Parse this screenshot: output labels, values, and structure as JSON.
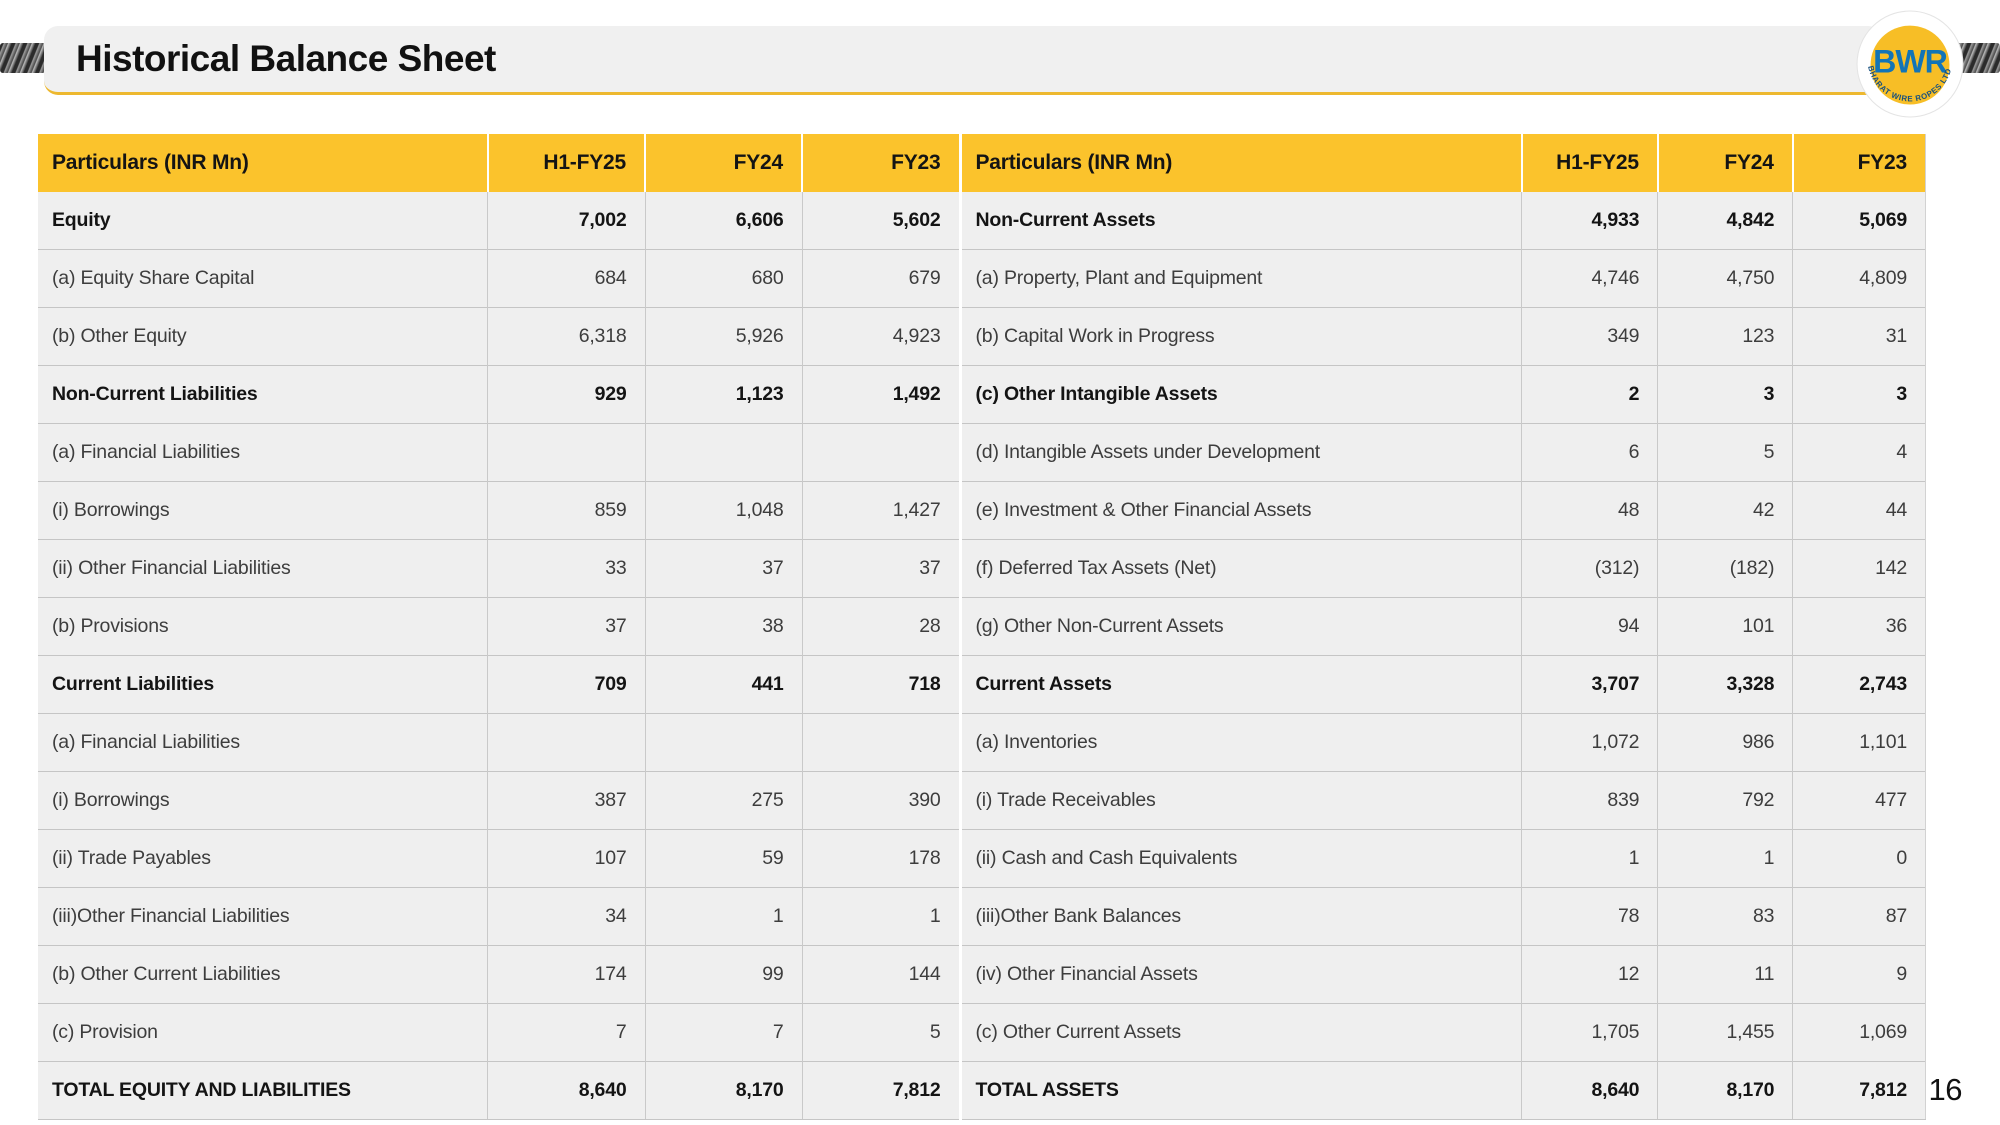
{
  "slide": {
    "title": "Historical Balance Sheet",
    "page_number": "16"
  },
  "logo": {
    "abbr": "BWR",
    "company": "BHARAT WIRE ROPES LTD.",
    "colors": {
      "disc": "#F7BE26",
      "abbr_text": "#1274B7",
      "ring_text": "#17507F"
    }
  },
  "theme": {
    "header_bg": "#FBC32C",
    "row_bg": "#EFEFEF",
    "accent_line": "#EDB82F",
    "title_bar_bg": "#F0F0F0"
  },
  "table": {
    "left": {
      "headers": [
        "Particulars (INR Mn)",
        "H1-FY25",
        "FY24",
        "FY23"
      ],
      "rows": [
        {
          "label": "Equity",
          "bold": true,
          "values": [
            "7,002",
            "6,606",
            "5,602"
          ]
        },
        {
          "label": "(a) Equity Share Capital",
          "values": [
            "684",
            "680",
            "679"
          ]
        },
        {
          "label": "(b) Other Equity",
          "values": [
            "6,318",
            "5,926",
            "4,923"
          ]
        },
        {
          "label": "Non-Current Liabilities",
          "bold": true,
          "values": [
            "929",
            "1,123",
            "1,492"
          ]
        },
        {
          "label": "(a) Financial Liabilities",
          "values": [
            "",
            "",
            ""
          ]
        },
        {
          "label": "(i) Borrowings",
          "values": [
            "859",
            "1,048",
            "1,427"
          ]
        },
        {
          "label": "(ii) Other Financial Liabilities",
          "values": [
            "33",
            "37",
            "37"
          ]
        },
        {
          "label": "(b) Provisions",
          "values": [
            "37",
            "38",
            "28"
          ]
        },
        {
          "label": "Current Liabilities",
          "bold": true,
          "values": [
            "709",
            "441",
            "718"
          ]
        },
        {
          "label": "(a) Financial Liabilities",
          "values": [
            "",
            "",
            ""
          ]
        },
        {
          "label": "(i) Borrowings",
          "values": [
            "387",
            "275",
            "390"
          ]
        },
        {
          "label": "(ii) Trade Payables",
          "values": [
            "107",
            "59",
            "178"
          ]
        },
        {
          "label": "(iii)Other Financial Liabilities",
          "values": [
            "34",
            "1",
            "1"
          ]
        },
        {
          "label": "(b) Other Current Liabilities",
          "values": [
            "174",
            "99",
            "144"
          ]
        },
        {
          "label": "(c) Provision",
          "values": [
            "7",
            "7",
            "5"
          ]
        },
        {
          "label": "TOTAL EQUITY AND LIABILITIES",
          "bold": true,
          "values": [
            "8,640",
            "8,170",
            "7,812"
          ]
        }
      ]
    },
    "right": {
      "headers": [
        "Particulars (INR Mn)",
        "H1-FY25",
        "FY24",
        "FY23"
      ],
      "rows": [
        {
          "label": "Non-Current Assets",
          "bold": true,
          "values": [
            "4,933",
            "4,842",
            "5,069"
          ]
        },
        {
          "label": "(a) Property, Plant and Equipment",
          "values": [
            "4,746",
            "4,750",
            "4,809"
          ]
        },
        {
          "label": "(b) Capital Work in Progress",
          "values": [
            "349",
            "123",
            "31"
          ]
        },
        {
          "label": "(c) Other Intangible Assets",
          "values": [
            "2",
            "3",
            "3"
          ]
        },
        {
          "label": "(d) Intangible Assets under Development",
          "values": [
            "6",
            "5",
            "4"
          ]
        },
        {
          "label": "(e) Investment & Other Financial Assets",
          "values": [
            "48",
            "42",
            "44"
          ]
        },
        {
          "label": "(f) Deferred Tax Assets (Net)",
          "values": [
            "(312)",
            "(182)",
            "142"
          ]
        },
        {
          "label": "(g) Other Non-Current Assets",
          "values": [
            "94",
            "101",
            "36"
          ]
        },
        {
          "label": "Current Assets",
          "bold": true,
          "values": [
            "3,707",
            "3,328",
            "2,743"
          ]
        },
        {
          "label": "(a) Inventories",
          "values": [
            "1,072",
            "986",
            "1,101"
          ]
        },
        {
          "label": "(i) Trade Receivables",
          "values": [
            "839",
            "792",
            "477"
          ]
        },
        {
          "label": "(ii) Cash and Cash Equivalents",
          "values": [
            "1",
            "1",
            "0"
          ]
        },
        {
          "label": "(iii)Other Bank Balances",
          "values": [
            "78",
            "83",
            "87"
          ]
        },
        {
          "label": "(iv) Other Financial Assets",
          "values": [
            "12",
            "11",
            "9"
          ]
        },
        {
          "label": "(c) Other Current Assets",
          "values": [
            "1,705",
            "1,455",
            "1,069"
          ]
        },
        {
          "label": "TOTAL ASSETS",
          "bold": true,
          "values": [
            "8,640",
            "8,170",
            "7,812"
          ]
        }
      ]
    }
  }
}
